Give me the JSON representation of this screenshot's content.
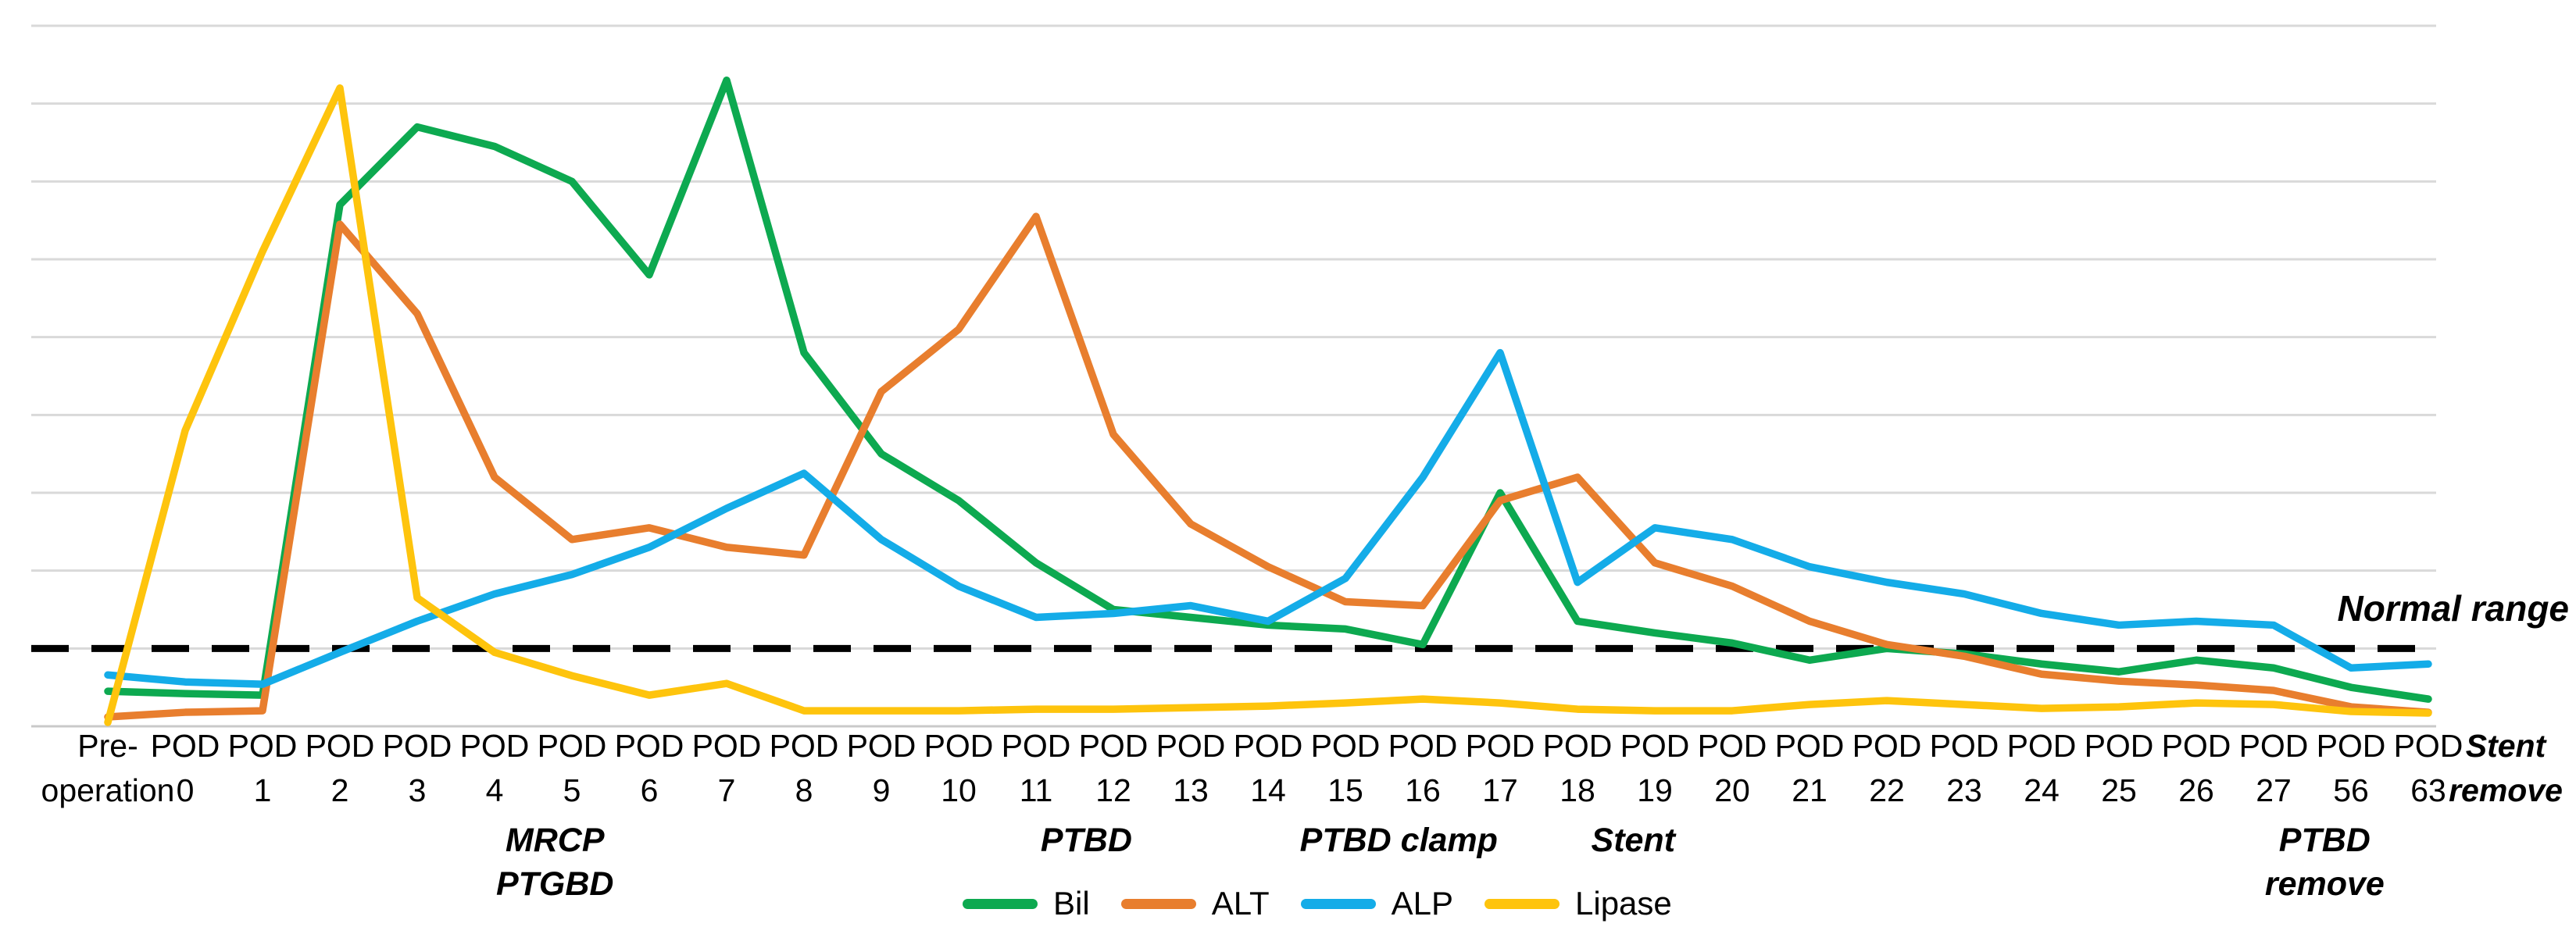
{
  "chart_data": {
    "type": "line",
    "title": "",
    "xlabel": "",
    "ylabel": "",
    "y_axis": {
      "min": 0,
      "max": 9,
      "gridline_step": 1,
      "tick_labels_visible": false,
      "grid": true
    },
    "legend_position": "bottom-center",
    "normal_range": {
      "label": "Normal range",
      "value": 1,
      "line_style": "dashed",
      "line_color": "#000000"
    },
    "categories": [
      {
        "label": "Pre-operation",
        "lines": [
          "Pre-",
          "operation"
        ]
      },
      {
        "label": "POD 0",
        "lines": [
          "POD",
          "0"
        ]
      },
      {
        "label": "POD 1",
        "lines": [
          "POD",
          "1"
        ]
      },
      {
        "label": "POD 2",
        "lines": [
          "POD",
          "2"
        ]
      },
      {
        "label": "POD 3",
        "lines": [
          "POD",
          "3"
        ]
      },
      {
        "label": "POD 4",
        "lines": [
          "POD",
          "4"
        ]
      },
      {
        "label": "POD 5",
        "lines": [
          "POD",
          "5"
        ]
      },
      {
        "label": "POD 6",
        "lines": [
          "POD",
          "6"
        ]
      },
      {
        "label": "POD 7",
        "lines": [
          "POD",
          "7"
        ]
      },
      {
        "label": "POD 8",
        "lines": [
          "POD",
          "8"
        ]
      },
      {
        "label": "POD 9",
        "lines": [
          "POD",
          "9"
        ]
      },
      {
        "label": "POD 10",
        "lines": [
          "POD",
          "10"
        ]
      },
      {
        "label": "POD 11",
        "lines": [
          "POD",
          "11"
        ]
      },
      {
        "label": "POD 12",
        "lines": [
          "POD",
          "12"
        ]
      },
      {
        "label": "POD 13",
        "lines": [
          "POD",
          "13"
        ]
      },
      {
        "label": "POD 14",
        "lines": [
          "POD",
          "14"
        ]
      },
      {
        "label": "POD 15",
        "lines": [
          "POD",
          "15"
        ]
      },
      {
        "label": "POD 16",
        "lines": [
          "POD",
          "16"
        ]
      },
      {
        "label": "POD 17",
        "lines": [
          "POD",
          "17"
        ]
      },
      {
        "label": "POD 18",
        "lines": [
          "POD",
          "18"
        ]
      },
      {
        "label": "POD 19",
        "lines": [
          "POD",
          "19"
        ]
      },
      {
        "label": "POD 20",
        "lines": [
          "POD",
          "20"
        ]
      },
      {
        "label": "POD 21",
        "lines": [
          "POD",
          "21"
        ]
      },
      {
        "label": "POD 22",
        "lines": [
          "POD",
          "22"
        ]
      },
      {
        "label": "POD 23",
        "lines": [
          "POD",
          "23"
        ]
      },
      {
        "label": "POD 24",
        "lines": [
          "POD",
          "24"
        ]
      },
      {
        "label": "POD 25",
        "lines": [
          "POD",
          "25"
        ]
      },
      {
        "label": "POD 26",
        "lines": [
          "POD",
          "26"
        ]
      },
      {
        "label": "POD 27",
        "lines": [
          "POD",
          "27"
        ]
      },
      {
        "label": "POD 56",
        "lines": [
          "POD",
          "56"
        ]
      },
      {
        "label": "POD 63",
        "lines": [
          "POD",
          "63"
        ]
      },
      {
        "label": "Stent remove",
        "lines": [
          "Stent",
          "remove"
        ],
        "emphasis": true
      }
    ],
    "series": [
      {
        "name": "Bil",
        "color": "#0DA950",
        "values": [
          0.45,
          0.42,
          0.4,
          6.7,
          7.7,
          7.45,
          7.0,
          5.8,
          8.3,
          4.8,
          3.5,
          2.9,
          2.1,
          1.5,
          1.4,
          1.3,
          1.25,
          1.05,
          3.0,
          1.35,
          1.2,
          1.07,
          0.85,
          1.0,
          0.93,
          0.8,
          0.7,
          0.85,
          0.75,
          0.5,
          0.35,
          null
        ]
      },
      {
        "name": "ALT",
        "color": "#E87E2E",
        "values": [
          0.12,
          0.18,
          0.2,
          6.45,
          5.3,
          3.2,
          2.4,
          2.55,
          2.3,
          2.2,
          4.3,
          5.1,
          6.55,
          3.75,
          2.6,
          2.05,
          1.6,
          1.55,
          2.9,
          3.2,
          2.1,
          1.8,
          1.35,
          1.05,
          0.9,
          0.67,
          0.58,
          0.53,
          0.46,
          0.25,
          0.18,
          null
        ]
      },
      {
        "name": "ALP",
        "color": "#14ACE8",
        "values": [
          0.66,
          0.57,
          0.54,
          0.95,
          1.35,
          1.7,
          1.95,
          2.3,
          2.8,
          3.25,
          2.4,
          1.8,
          1.4,
          1.45,
          1.55,
          1.35,
          1.9,
          3.2,
          4.8,
          1.85,
          2.55,
          2.4,
          2.05,
          1.85,
          1.7,
          1.45,
          1.3,
          1.35,
          1.3,
          0.75,
          0.8,
          null
        ]
      },
      {
        "name": "Lipase",
        "color": "#FEC40D",
        "values": [
          0.05,
          3.8,
          6.1,
          8.2,
          1.65,
          0.95,
          0.65,
          0.4,
          0.55,
          0.2,
          0.2,
          0.2,
          0.22,
          0.22,
          0.24,
          0.26,
          0.3,
          0.35,
          0.3,
          0.22,
          0.2,
          0.2,
          0.28,
          0.33,
          0.28,
          0.23,
          0.25,
          0.3,
          0.28,
          0.19,
          0.17,
          null
        ]
      }
    ],
    "annotations": [
      {
        "lines": [
          "MRCP",
          "PTGBD"
        ],
        "anchor_index": 5.78
      },
      {
        "lines": [
          "PTBD"
        ],
        "anchor_index": 12.65
      },
      {
        "lines": [
          "PTBD clamp"
        ],
        "anchor_index": 16.69
      },
      {
        "lines": [
          "Stent"
        ],
        "anchor_index": 19.72
      },
      {
        "lines": [
          "PTBD",
          "remove"
        ],
        "anchor_index": 28.66
      }
    ],
    "colors": {
      "gridline": "#D9D9D9",
      "axis_line": "#C9C9C9",
      "text": "#000000"
    }
  }
}
